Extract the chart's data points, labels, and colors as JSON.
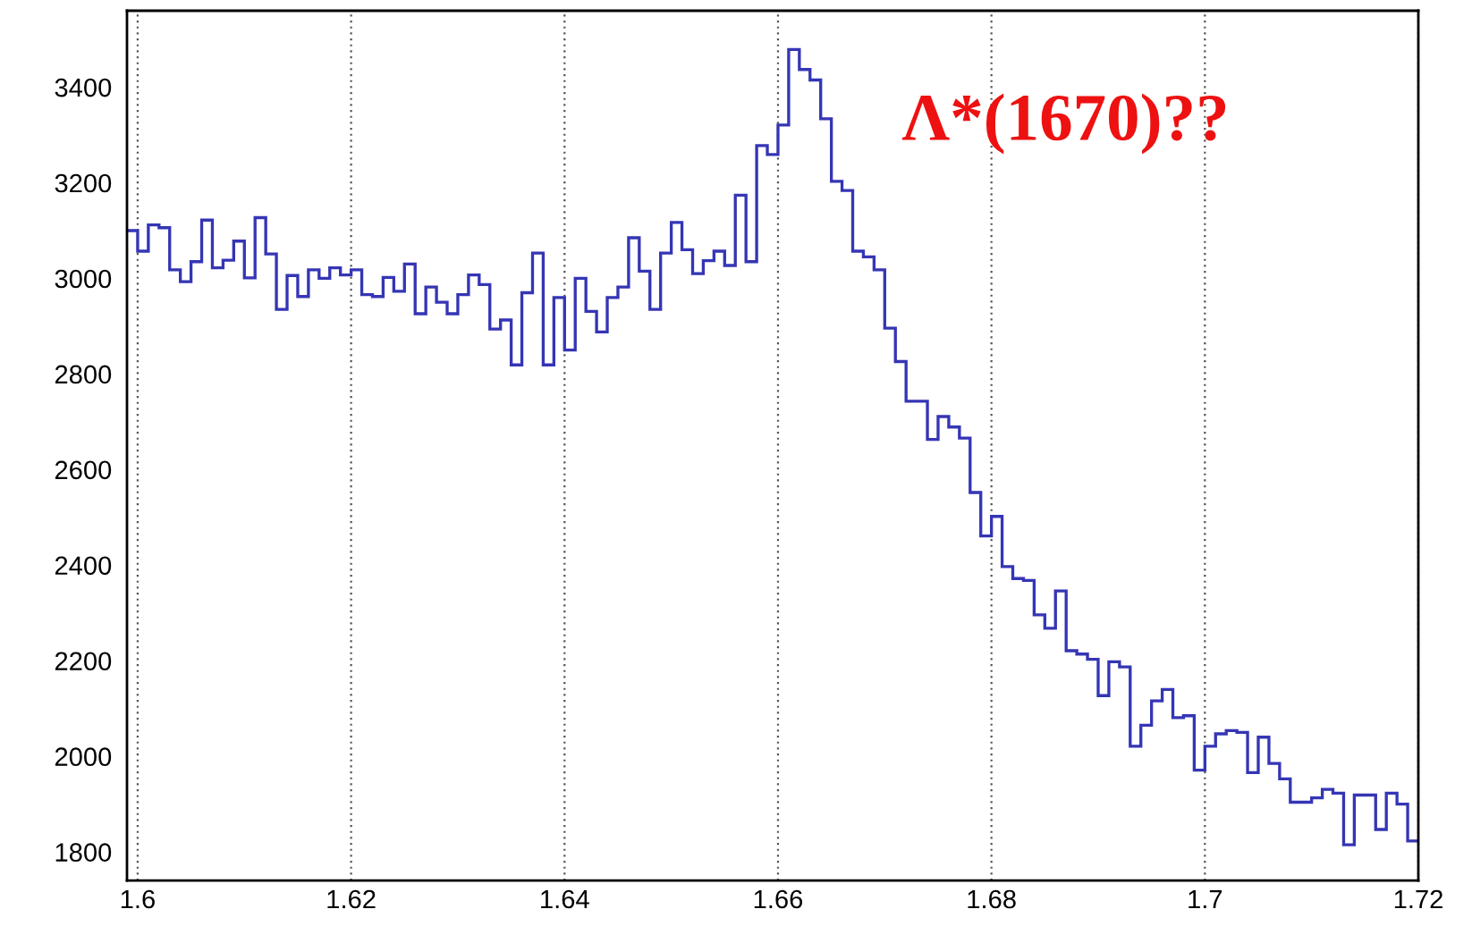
{
  "chart_data": {
    "type": "histogram",
    "bins": [
      1.599,
      1.6,
      1.601,
      1.602,
      1.603,
      1.604,
      1.605,
      1.606,
      1.607,
      1.608,
      1.609,
      1.61,
      1.611,
      1.612,
      1.613,
      1.614,
      1.615,
      1.616,
      1.617,
      1.618,
      1.619,
      1.62,
      1.621,
      1.622,
      1.623,
      1.624,
      1.625,
      1.626,
      1.627,
      1.628,
      1.629,
      1.63,
      1.631,
      1.632,
      1.633,
      1.634,
      1.635,
      1.636,
      1.637,
      1.638,
      1.639,
      1.64,
      1.641,
      1.642,
      1.643,
      1.644,
      1.645,
      1.646,
      1.647,
      1.648,
      1.649,
      1.65,
      1.651,
      1.652,
      1.653,
      1.654,
      1.655,
      1.656,
      1.657,
      1.658,
      1.659,
      1.66,
      1.661,
      1.662,
      1.663,
      1.664,
      1.665,
      1.666,
      1.667,
      1.668,
      1.669,
      1.67,
      1.671,
      1.672,
      1.673,
      1.674,
      1.675,
      1.676,
      1.677,
      1.678,
      1.679,
      1.68,
      1.681,
      1.682,
      1.683,
      1.684,
      1.685,
      1.686,
      1.687,
      1.688,
      1.689,
      1.69,
      1.691,
      1.692,
      1.693,
      1.694,
      1.695,
      1.696,
      1.697,
      1.698,
      1.699,
      1.7,
      1.701,
      1.702,
      1.703,
      1.704,
      1.705,
      1.706,
      1.707,
      1.708,
      1.709,
      1.71,
      1.711,
      1.712,
      1.713,
      1.714,
      1.715,
      1.716,
      1.717,
      1.718,
      1.719,
      1.72
    ],
    "values": [
      3100,
      3057,
      3112,
      3106,
      3018,
      2993,
      3035,
      3122,
      3022,
      3038,
      3078,
      3001,
      3127,
      3051,
      2935,
      3006,
      2962,
      3018,
      3000,
      3022,
      3007,
      3018,
      2966,
      2962,
      3002,
      2973,
      3030,
      2926,
      2982,
      2950,
      2926,
      2966,
      3007,
      2987,
      2894,
      2913,
      2819,
      2970,
      3053,
      2819,
      2960,
      2850,
      3000,
      2931,
      2888,
      2960,
      2982,
      3085,
      3015,
      2935,
      3053,
      3117,
      3060,
      3010,
      3037,
      3057,
      3027,
      3174,
      3035,
      3278,
      3259,
      3321,
      3479,
      3437,
      3415,
      3334,
      3203,
      3184,
      3057,
      3045,
      3018,
      2896,
      2826,
      2743,
      2743,
      2663,
      2711,
      2689,
      2666,
      2552,
      2461,
      2502,
      2397,
      2372,
      2368,
      2296,
      2268,
      2346,
      2221,
      2214,
      2203,
      2127,
      2198,
      2187,
      2021,
      2065,
      2116,
      2140,
      2081,
      2085,
      1971,
      2021,
      2047,
      2054,
      2050,
      1966,
      2040,
      1985,
      1953,
      1904,
      1904,
      1913,
      1931,
      1923,
      1815,
      1919,
      1919,
      1847,
      1923,
      1900,
      1823
    ],
    "color": "#3535b5",
    "xlim": [
      1.599,
      1.72
    ],
    "xticks": [
      1.6,
      1.62,
      1.64,
      1.66,
      1.68,
      1.7,
      1.72
    ],
    "ylim": [
      1740,
      3560
    ],
    "yticks": [
      1800,
      2000,
      2200,
      2400,
      2600,
      2800,
      3000,
      3200,
      3400
    ],
    "grid": "x",
    "annotations": [
      "Λ*(1670)??"
    ]
  }
}
